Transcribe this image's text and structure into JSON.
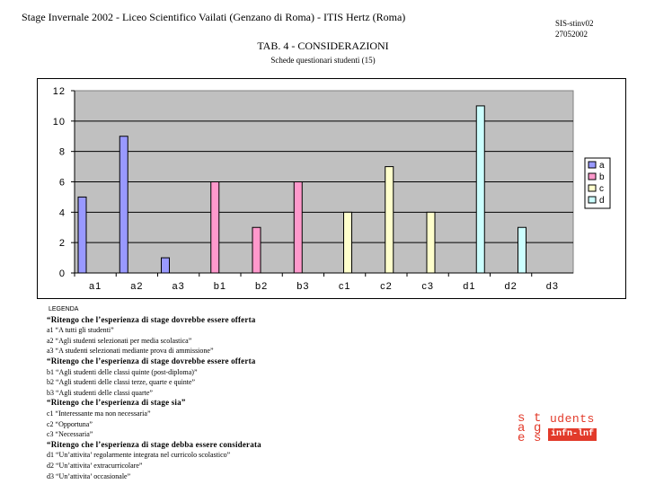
{
  "header": {
    "left": "Stage Invernale  2002 - Liceo Scientifico Vailati   (Genzano di Roma) -  ITIS Hertz (Roma)",
    "code": "SIS-stinv02",
    "date": "27052002"
  },
  "title": "TAB. 4 - CONSIDERAZIONI",
  "subtitle": "Schede questionari studenti  (15)",
  "colors": {
    "plot_bg": "#c0c0c0",
    "a": "#9999ff",
    "b": "#ff99cc",
    "c": "#ffffcc",
    "d": "#ccffff",
    "logo": "#e23a2a"
  },
  "chart_data": {
    "type": "bar",
    "categories": [
      "a1",
      "a2",
      "a3",
      "b1",
      "b2",
      "b3",
      "c1",
      "c2",
      "c3",
      "d1",
      "d2",
      "d3"
    ],
    "series": [
      {
        "name": "a",
        "values": [
          5,
          9,
          1,
          0,
          0,
          0,
          0,
          0,
          0,
          0,
          0,
          0
        ]
      },
      {
        "name": "b",
        "values": [
          0,
          0,
          0,
          6,
          3,
          6,
          0,
          0,
          0,
          0,
          0,
          0
        ]
      },
      {
        "name": "c",
        "values": [
          0,
          0,
          0,
          0,
          0,
          0,
          4,
          7,
          4,
          0,
          0,
          0
        ]
      },
      {
        "name": "d",
        "values": [
          0,
          0,
          0,
          0,
          0,
          0,
          0,
          0,
          0,
          11,
          3,
          0
        ]
      }
    ],
    "ylim": [
      0,
      12
    ],
    "yticks": [
      0,
      2,
      4,
      6,
      8,
      10,
      12
    ],
    "grid": true,
    "legend": "right"
  },
  "legend_text": {
    "title": "LEGENDA",
    "groups": [
      {
        "title": "“Ritengo che l’esperienza di stage dovrebbe essere offerta",
        "items": [
          "a1 “A tutti gli studenti”",
          "a2 “Agli studenti selezionati per media scolastica”",
          "a3 “A studenti selezionati mediante prova di ammissione”"
        ]
      },
      {
        "title": "“Ritengo che l’esperienza di stage dovrebbe essere offerta",
        "items": [
          "b1 “Agli studenti delle classi quinte (post-diploma)”",
          "b2 “Agli studenti delle classi terze, quarte e quinte”",
          "b3 “Agli studenti delle classi quarte”"
        ]
      },
      {
        "title": "“Ritengo che l’esperienza di stage sia”",
        "items": [
          "c1 “Interessante ma non necessaria”",
          "c2 “Opportuna”",
          "c3 “Necessaria”"
        ]
      },
      {
        "title": "“Ritengo che l’esperienza di stage debba essere considerata",
        "items": [
          "d1 “Un’attivita’ regolarmente integrata nel curricolo scolastico”",
          "d2 “Un’attivita’ extracurricolare”",
          "d3 “Un’attivita’ occasionale”"
        ]
      }
    ]
  },
  "logo": {
    "letters": [
      "s",
      "t",
      "a",
      "g",
      "e",
      "s"
    ],
    "word": "udents",
    "badge": "infn-lnf"
  }
}
